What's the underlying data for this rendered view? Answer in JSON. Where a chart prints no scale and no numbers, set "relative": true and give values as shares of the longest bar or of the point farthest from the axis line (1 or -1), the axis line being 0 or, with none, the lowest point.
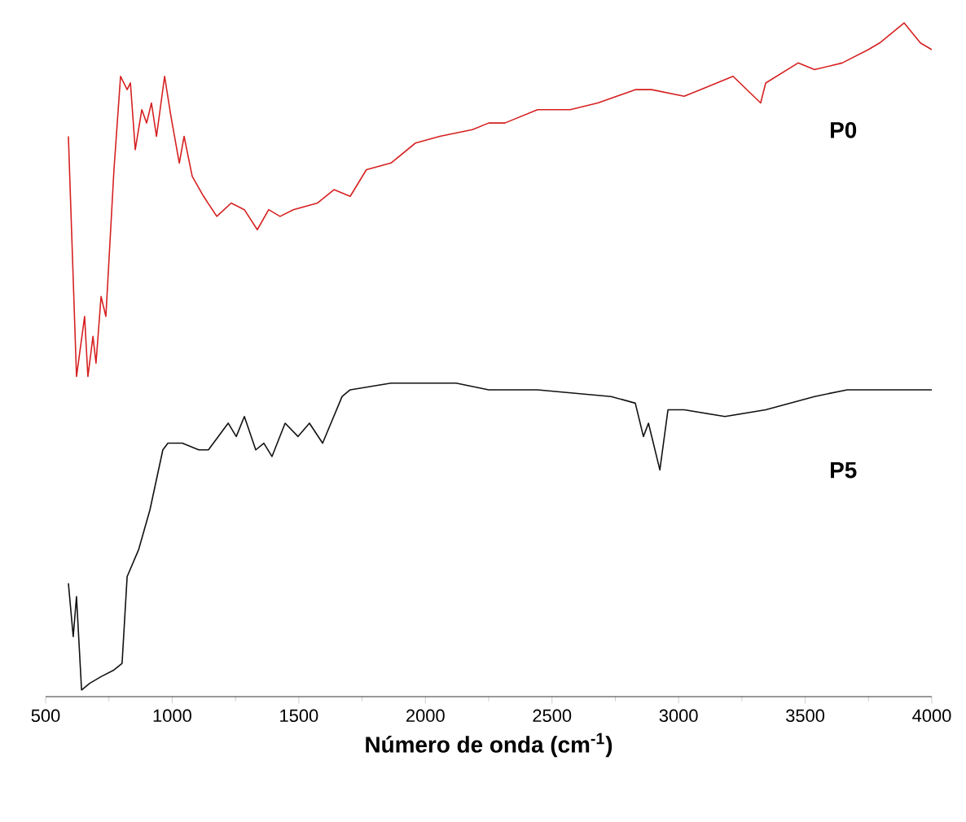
{
  "chart_data": {
    "type": "line",
    "relative": true,
    "xlabel": "Número de onda (cm$^{-1}$)",
    "xlim": [
      500,
      4000
    ],
    "xticks": [
      500,
      1000,
      1500,
      2000,
      2500,
      3000,
      3500,
      4000
    ],
    "grid": false,
    "marker": "none",
    "line_style": "solid",
    "series": [
      {
        "name": "P0",
        "color": "#d62020",
        "x": [
          590,
          622,
          654,
          667,
          687,
          699,
          719,
          738,
          770,
          796,
          822,
          835,
          854,
          880,
          899,
          918,
          938,
          970,
          995,
          1028,
          1047,
          1079,
          1124,
          1176,
          1233,
          1285,
          1336,
          1381,
          1426,
          1478,
          1574,
          1639,
          1703,
          1767,
          1864,
          1961,
          2057,
          2186,
          2250,
          2314,
          2443,
          2572,
          2681,
          2829,
          2893,
          3022,
          3086,
          3215,
          3324,
          3344,
          3472,
          3537,
          3646,
          3749,
          3794,
          3891,
          3955,
          4000
        ],
        "values": [
          0.83,
          0.47,
          0.56,
          0.47,
          0.53,
          0.49,
          0.59,
          0.56,
          0.78,
          0.92,
          0.9,
          0.91,
          0.81,
          0.87,
          0.85,
          0.88,
          0.83,
          0.92,
          0.86,
          0.79,
          0.83,
          0.77,
          0.74,
          0.71,
          0.73,
          0.72,
          0.69,
          0.72,
          0.71,
          0.72,
          0.73,
          0.75,
          0.74,
          0.78,
          0.79,
          0.82,
          0.83,
          0.84,
          0.85,
          0.85,
          0.87,
          0.87,
          0.88,
          0.9,
          0.9,
          0.89,
          0.9,
          0.92,
          0.88,
          0.91,
          0.94,
          0.93,
          0.94,
          0.96,
          0.97,
          1.0,
          0.97,
          0.96
        ]
      },
      {
        "name": "P5",
        "color": "#111111",
        "x": [
          590,
          609,
          622,
          642,
          674,
          719,
          770,
          802,
          822,
          867,
          912,
          963,
          983,
          1040,
          1105,
          1143,
          1221,
          1253,
          1285,
          1330,
          1362,
          1394,
          1446,
          1497,
          1542,
          1594,
          1671,
          1703,
          1864,
          2121,
          2250,
          2443,
          2733,
          2829,
          2861,
          2881,
          2926,
          2958,
          3022,
          3183,
          3344,
          3537,
          3666,
          3794,
          4000
        ],
        "values": [
          0.16,
          0.08,
          0.14,
          0.0,
          0.01,
          0.02,
          0.03,
          0.04,
          0.17,
          0.21,
          0.27,
          0.36,
          0.37,
          0.37,
          0.36,
          0.36,
          0.4,
          0.38,
          0.41,
          0.36,
          0.37,
          0.35,
          0.4,
          0.38,
          0.4,
          0.37,
          0.44,
          0.45,
          0.46,
          0.46,
          0.45,
          0.45,
          0.44,
          0.43,
          0.38,
          0.4,
          0.33,
          0.42,
          0.42,
          0.41,
          0.42,
          0.44,
          0.45,
          0.45,
          0.45
        ]
      }
    ]
  }
}
